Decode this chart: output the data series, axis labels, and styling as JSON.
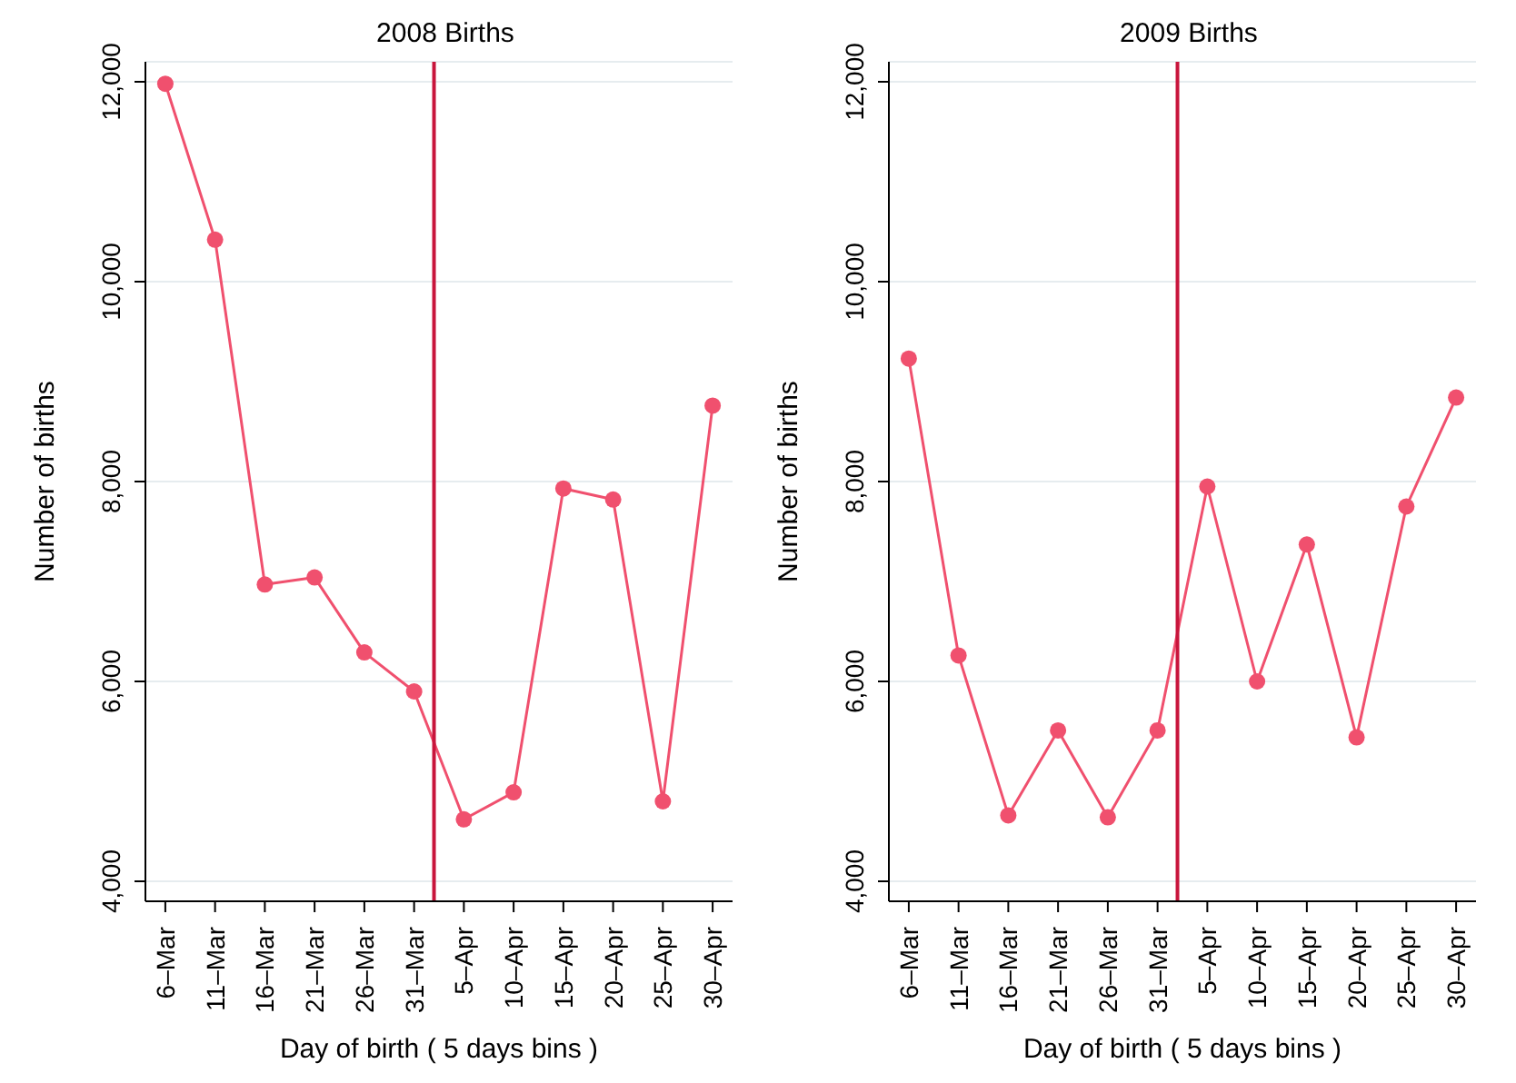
{
  "chart_data": [
    {
      "type": "line",
      "title": "2008 Births",
      "xlabel": "Day of birth ( 5 days bins )",
      "ylabel": "Number of births",
      "x": [
        "--03-06",
        "--03-11",
        "--03-16",
        "--03-21",
        "--03-26",
        "--03-31",
        "--04-05",
        "--04-10",
        "--04-15",
        "--04-20",
        "--04-25",
        "--04-30"
      ],
      "series": [
        {
          "color": "#f0506e",
          "values": [
            11980,
            10420,
            6970,
            7040,
            6290,
            5900,
            4620,
            4890,
            7930,
            7820,
            4800,
            8760
          ]
        }
      ],
      "xlim": [
        "--03-04",
        "--05-02"
      ],
      "xticks": [
        {
          "value": "--03-06",
          "label": "6–Mar"
        },
        {
          "value": "--03-11",
          "label": "11–Mar"
        },
        {
          "value": "--03-16",
          "label": "16–Mar"
        },
        {
          "value": "--03-21",
          "label": "21–Mar"
        },
        {
          "value": "--03-26",
          "label": "26–Mar"
        },
        {
          "value": "--03-31",
          "label": "31–Mar"
        },
        {
          "value": "--04-05",
          "label": "5–Apr"
        },
        {
          "value": "--04-10",
          "label": "10–Apr"
        },
        {
          "value": "--04-15",
          "label": "15–Apr"
        },
        {
          "value": "--04-20",
          "label": "20–Apr"
        },
        {
          "value": "--04-25",
          "label": "25–Apr"
        },
        {
          "value": "--04-30",
          "label": "30–Apr"
        }
      ],
      "ylim": [
        3800,
        12200
      ],
      "yticks": [
        {
          "value": 4000,
          "label": "4,000"
        },
        {
          "value": 6000,
          "label": "6,000"
        },
        {
          "value": 8000,
          "label": "8,000"
        },
        {
          "value": 10000,
          "label": "10,000"
        },
        {
          "value": 12000,
          "label": "12,000"
        }
      ],
      "ref_lines": [
        {
          "axis": "x",
          "value": "--04-02",
          "color": "#c8153c"
        }
      ],
      "grid": "y",
      "legend": false,
      "marker": "circle",
      "line_style": "solid"
    },
    {
      "type": "line",
      "title": "2009 Births",
      "xlabel": "Day of birth ( 5 days bins )",
      "ylabel": "Number of births",
      "x": [
        "--03-06",
        "--03-11",
        "--03-16",
        "--03-21",
        "--03-26",
        "--03-31",
        "--04-05",
        "--04-10",
        "--04-15",
        "--04-20",
        "--04-25",
        "--04-30"
      ],
      "series": [
        {
          "color": "#f0506e",
          "values": [
            9230,
            6260,
            4660,
            5510,
            4640,
            5510,
            7950,
            6000,
            7370,
            5440,
            7750,
            8840
          ]
        }
      ],
      "xlim": [
        "--03-04",
        "--05-02"
      ],
      "xticks": [
        {
          "value": "--03-06",
          "label": "6–Mar"
        },
        {
          "value": "--03-11",
          "label": "11–Mar"
        },
        {
          "value": "--03-16",
          "label": "16–Mar"
        },
        {
          "value": "--03-21",
          "label": "21–Mar"
        },
        {
          "value": "--03-26",
          "label": "26–Mar"
        },
        {
          "value": "--03-31",
          "label": "31–Mar"
        },
        {
          "value": "--04-05",
          "label": "5–Apr"
        },
        {
          "value": "--04-10",
          "label": "10–Apr"
        },
        {
          "value": "--04-15",
          "label": "15–Apr"
        },
        {
          "value": "--04-20",
          "label": "20–Apr"
        },
        {
          "value": "--04-25",
          "label": "25–Apr"
        },
        {
          "value": "--04-30",
          "label": "30–Apr"
        }
      ],
      "ylim": [
        3800,
        12200
      ],
      "yticks": [
        {
          "value": 4000,
          "label": "4,000"
        },
        {
          "value": 6000,
          "label": "6,000"
        },
        {
          "value": 8000,
          "label": "8,000"
        },
        {
          "value": 10000,
          "label": "10,000"
        },
        {
          "value": 12000,
          "label": "12,000"
        }
      ],
      "ref_lines": [
        {
          "axis": "x",
          "value": "--04-02",
          "color": "#c8153c"
        }
      ],
      "grid": "y",
      "legend": false,
      "marker": "circle",
      "line_style": "solid"
    }
  ]
}
